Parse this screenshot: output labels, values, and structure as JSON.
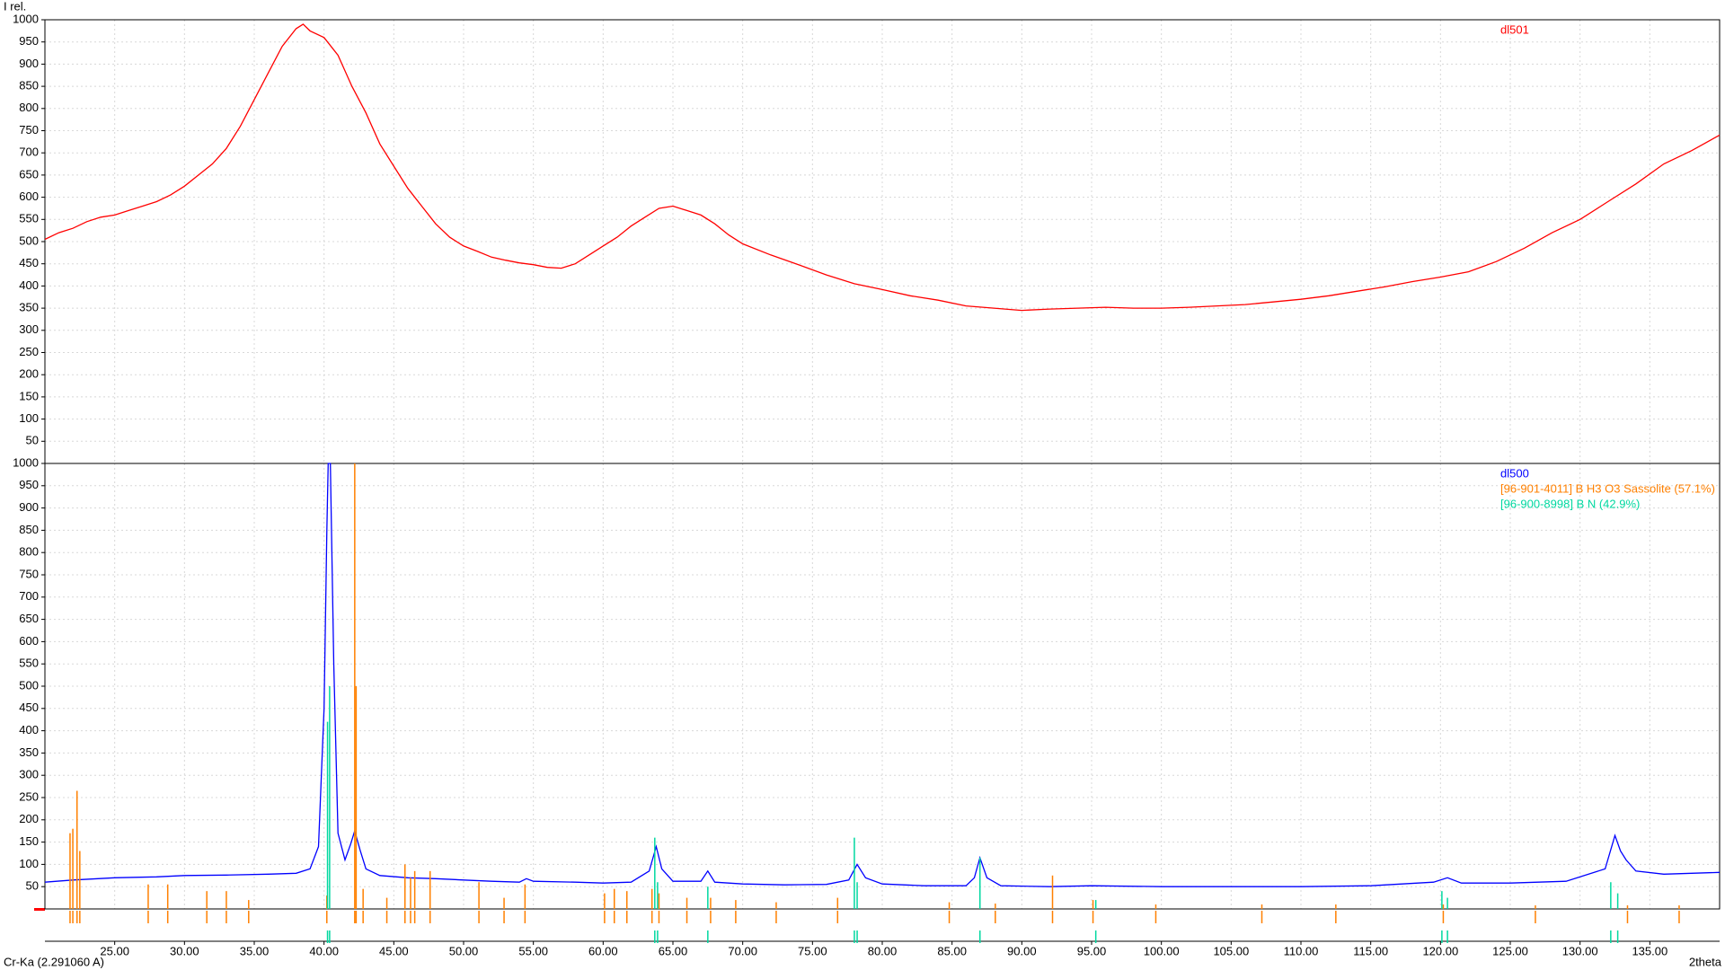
{
  "chart_data": [
    {
      "type": "line",
      "y_label": "I rel.",
      "xlim": [
        20,
        140
      ],
      "ylim": [
        0,
        1000
      ],
      "yticks": [
        50,
        100,
        150,
        200,
        250,
        300,
        350,
        400,
        450,
        500,
        550,
        600,
        650,
        700,
        750,
        800,
        850,
        900,
        950,
        1000
      ],
      "grid": true,
      "series": [
        {
          "name": "dl501",
          "color": "#ff0000",
          "x": [
            20,
            21,
            22,
            23,
            24,
            25,
            26,
            27,
            28,
            29,
            30,
            31,
            32,
            33,
            34,
            35,
            36,
            37,
            38,
            38.5,
            39,
            40,
            41,
            42,
            43,
            44,
            45,
            46,
            47,
            48,
            49,
            50,
            51,
            52,
            53,
            54,
            55,
            56,
            57,
            58,
            59,
            60,
            61,
            62,
            63,
            64,
            65,
            66,
            67,
            68,
            69,
            70,
            72,
            74,
            76,
            78,
            80,
            82,
            84,
            86,
            88,
            90,
            92,
            94,
            96,
            98,
            100,
            102,
            104,
            106,
            108,
            110,
            112,
            114,
            116,
            118,
            120,
            122,
            124,
            126,
            128,
            130,
            132,
            134,
            136,
            138,
            140
          ],
          "values": [
            505,
            520,
            530,
            545,
            555,
            560,
            570,
            580,
            590,
            605,
            625,
            650,
            675,
            710,
            760,
            820,
            880,
            940,
            980,
            990,
            975,
            960,
            920,
            850,
            790,
            720,
            670,
            620,
            580,
            540,
            510,
            490,
            478,
            465,
            458,
            452,
            448,
            442,
            440,
            450,
            470,
            490,
            510,
            535,
            555,
            575,
            580,
            570,
            560,
            540,
            515,
            495,
            470,
            448,
            425,
            405,
            392,
            378,
            368,
            355,
            350,
            345,
            348,
            350,
            352,
            350,
            350,
            352,
            355,
            358,
            364,
            370,
            378,
            388,
            398,
            410,
            420,
            432,
            455,
            485,
            520,
            550,
            590,
            630,
            675,
            705,
            740
          ]
        }
      ]
    },
    {
      "type": "line",
      "xlim": [
        20,
        140
      ],
      "ylim": [
        0,
        1000
      ],
      "yticks": [
        50,
        100,
        150,
        200,
        250,
        300,
        350,
        400,
        450,
        500,
        550,
        600,
        650,
        700,
        750,
        800,
        850,
        900,
        950,
        1000
      ],
      "xticks": [
        {
          "value": 25,
          "label": "25.00"
        },
        {
          "value": 30,
          "label": "30.00"
        },
        {
          "value": 35,
          "label": "35.00"
        },
        {
          "value": 40,
          "label": "40.00"
        },
        {
          "value": 45,
          "label": "45.00"
        },
        {
          "value": 50,
          "label": "50.00"
        },
        {
          "value": 55,
          "label": "55.00"
        },
        {
          "value": 60,
          "label": "60.00"
        },
        {
          "value": 65,
          "label": "65.00"
        },
        {
          "value": 70,
          "label": "70.00"
        },
        {
          "value": 75,
          "label": "75.00"
        },
        {
          "value": 80,
          "label": "80.00"
        },
        {
          "value": 85,
          "label": "85.00"
        },
        {
          "value": 90,
          "label": "90.00"
        },
        {
          "value": 95,
          "label": "95.00"
        },
        {
          "value": 100,
          "label": "100.00"
        },
        {
          "value": 105,
          "label": "105.00"
        },
        {
          "value": 110,
          "label": "110.00"
        },
        {
          "value": 115,
          "label": "115.00"
        },
        {
          "value": 120,
          "label": "120.00"
        },
        {
          "value": 125,
          "label": "125.00"
        },
        {
          "value": 130,
          "label": "130.00"
        },
        {
          "value": 135,
          "label": "135.00"
        }
      ],
      "x_label": "2theta",
      "radiation": "Cr-Ka (2.291060 A)",
      "grid": true,
      "series": [
        {
          "name": "dl500",
          "color": "#0000ff",
          "x": [
            20,
            22,
            25,
            28,
            30,
            33,
            36,
            38,
            39,
            39.6,
            40.0,
            40.2,
            40.3,
            40.45,
            40.7,
            41.0,
            41.5,
            41.9,
            42.2,
            42.6,
            43.0,
            44,
            46,
            48,
            50,
            52,
            54,
            54.5,
            55,
            58,
            60,
            62,
            63.3,
            63.8,
            64.2,
            65,
            67,
            67.5,
            68,
            70,
            73,
            76,
            77.6,
            78.2,
            78.8,
            80,
            83,
            86,
            86.6,
            87.0,
            87.5,
            88.5,
            92,
            95,
            100,
            105,
            110,
            115,
            119.5,
            120.5,
            121.5,
            125,
            129,
            131.8,
            132.5,
            132.9,
            133.3,
            134,
            136,
            140
          ],
          "values": [
            60,
            65,
            70,
            72,
            75,
            76,
            78,
            80,
            90,
            140,
            450,
            850,
            1000,
            1000,
            550,
            170,
            110,
            145,
            175,
            130,
            90,
            75,
            70,
            68,
            65,
            62,
            60,
            68,
            62,
            60,
            58,
            60,
            85,
            140,
            90,
            62,
            62,
            85,
            60,
            56,
            54,
            55,
            65,
            100,
            70,
            56,
            52,
            52,
            70,
            115,
            70,
            52,
            50,
            52,
            50,
            50,
            50,
            52,
            60,
            70,
            58,
            58,
            62,
            90,
            165,
            130,
            110,
            85,
            78,
            82
          ]
        },
        {
          "name": "[96-901-4011] B H3 O3  Sassolite (57.1%)",
          "color": "#ff8000",
          "type": "stick",
          "x": [
            21.8,
            22.0,
            22.3,
            22.5,
            27.4,
            28.8,
            31.6,
            33.0,
            34.6,
            40.2,
            42.2,
            42.3,
            42.8,
            44.5,
            45.8,
            46.2,
            46.5,
            47.6,
            51.1,
            52.9,
            54.4,
            60.1,
            60.8,
            61.7,
            63.5,
            64.0,
            66.0,
            67.7,
            69.5,
            72.4,
            76.8,
            84.8,
            88.1,
            92.2,
            95.1,
            99.6,
            107.2,
            112.5,
            120.2,
            126.8,
            133.4,
            137.1
          ],
          "values": [
            170,
            180,
            265,
            130,
            55,
            55,
            40,
            40,
            20,
            30,
            1000,
            500,
            45,
            25,
            100,
            70,
            85,
            85,
            60,
            25,
            55,
            35,
            45,
            40,
            45,
            35,
            25,
            25,
            20,
            15,
            25,
            15,
            12,
            75,
            20,
            10,
            10,
            10,
            10,
            8,
            8,
            8
          ]
        },
        {
          "name": "[96-900-8998] B N  (42.9%)",
          "color": "#00d8a0",
          "type": "stick",
          "x": [
            40.25,
            40.4,
            63.7,
            63.9,
            67.5,
            78.0,
            78.2,
            87.0,
            95.3,
            120.1,
            120.5,
            132.2,
            132.7
          ],
          "values": [
            420,
            500,
            160,
            60,
            50,
            160,
            60,
            115,
            20,
            40,
            25,
            60,
            35
          ]
        }
      ]
    }
  ]
}
